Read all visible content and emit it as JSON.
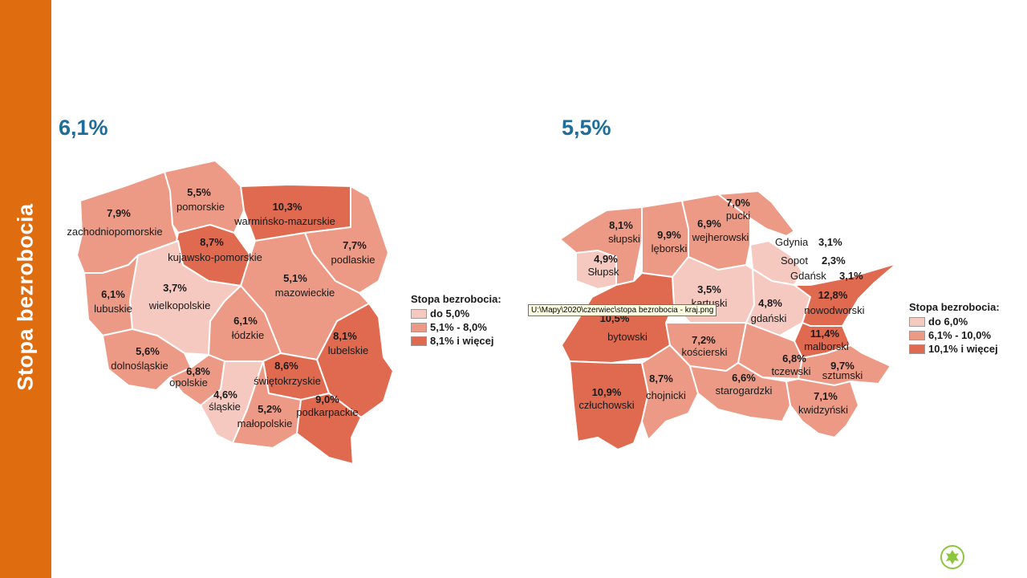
{
  "sidebar": {
    "title": "Stopa bezrobocia"
  },
  "poland": {
    "rate": "6,1%",
    "legend": {
      "title": "Stopa bezrobocia:",
      "items": [
        {
          "label": "do 5,0%",
          "color": "#f5c8c0"
        },
        {
          "label": "5,1% - 8,0%",
          "color": "#ec9a86"
        },
        {
          "label": "8,1% i więcej",
          "color": "#e06a50"
        }
      ]
    },
    "regions": [
      {
        "name": "zachodniopomorskie",
        "value": "7,9%"
      },
      {
        "name": "pomorskie",
        "value": "5,5%"
      },
      {
        "name": "warmińsko-mazurskie",
        "value": "10,3%"
      },
      {
        "name": "kujawsko-pomorskie",
        "value": "8,7%"
      },
      {
        "name": "podlaskie",
        "value": "7,7%"
      },
      {
        "name": "lubuskie",
        "value": "6,1%"
      },
      {
        "name": "wielkopolskie",
        "value": "3,7%"
      },
      {
        "name": "mazowieckie",
        "value": "5,1%"
      },
      {
        "name": "łódzkie",
        "value": "6,1%"
      },
      {
        "name": "lubelskie",
        "value": "8,1%"
      },
      {
        "name": "dolnośląskie",
        "value": "5,6%"
      },
      {
        "name": "opolskie",
        "value": "6,8%"
      },
      {
        "name": "świętokrzyskie",
        "value": "8,6%"
      },
      {
        "name": "śląskie",
        "value": "4,6%"
      },
      {
        "name": "małopolskie",
        "value": "5,2%"
      },
      {
        "name": "podkarpackie",
        "value": "9,0%"
      }
    ]
  },
  "pomorskie": {
    "rate": "5,5%",
    "legend": {
      "title": "Stopa bezrobocia:",
      "items": [
        {
          "label": "do 6,0%",
          "color": "#f5c8c0"
        },
        {
          "label": "6,1% - 10,0%",
          "color": "#ec9a86"
        },
        {
          "label": "10,1% i więcej",
          "color": "#e06a50"
        }
      ]
    },
    "counties": [
      {
        "name": "słupski",
        "value": "8,1%"
      },
      {
        "name": "lęborski",
        "value": "9,9%"
      },
      {
        "name": "wejherowski",
        "value": "6,9%"
      },
      {
        "name": "pucki",
        "value": "7,0%"
      },
      {
        "name": "Słupsk",
        "value": "4,9%"
      },
      {
        "name": "Gdynia",
        "value": "3,1%"
      },
      {
        "name": "Sopot",
        "value": "2,3%"
      },
      {
        "name": "Gdańsk",
        "value": "3,1%"
      },
      {
        "name": "kartuski",
        "value": "3,5%"
      },
      {
        "name": "gdański",
        "value": "4,8%"
      },
      {
        "name": "nowodworski",
        "value": "12,8%"
      },
      {
        "name": "bytowski",
        "value": "10,5%"
      },
      {
        "name": "kościerski",
        "value": "7,2%"
      },
      {
        "name": "malborski",
        "value": "11,4%"
      },
      {
        "name": "tczewski",
        "value": "6,8%"
      },
      {
        "name": "sztumski",
        "value": "9,7%"
      },
      {
        "name": "człuchowski",
        "value": "10,9%"
      },
      {
        "name": "chojnicki",
        "value": "8,7%"
      },
      {
        "name": "starogardzki",
        "value": "6,6%"
      },
      {
        "name": "kwidzyński",
        "value": "7,1%"
      }
    ]
  },
  "tooltip": {
    "text": "U:\\Mapy\\2020\\czerwiec\\stopa bezrobocia - kraj.png"
  },
  "logo": {
    "icon": "leaf-emblem-icon",
    "color": "#8cc63f"
  }
}
